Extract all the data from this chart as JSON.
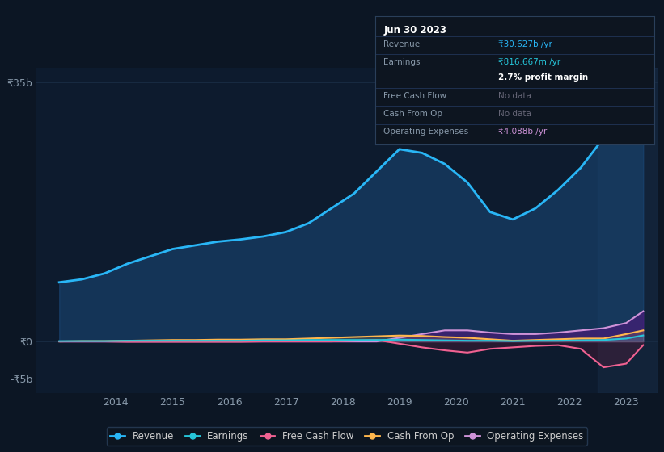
{
  "background_color": "#0c1624",
  "plot_bg_color": "#0d1b2e",
  "grid_color": "#1a2d45",
  "years": [
    2013.0,
    2013.4,
    2013.8,
    2014.2,
    2014.6,
    2015.0,
    2015.4,
    2015.8,
    2016.2,
    2016.6,
    2017.0,
    2017.4,
    2017.8,
    2018.2,
    2018.6,
    2019.0,
    2019.4,
    2019.8,
    2020.2,
    2020.6,
    2021.0,
    2021.4,
    2021.8,
    2022.2,
    2022.6,
    2023.0,
    2023.3
  ],
  "revenue": [
    8.0,
    8.4,
    9.2,
    10.5,
    11.5,
    12.5,
    13.0,
    13.5,
    13.8,
    14.2,
    14.8,
    16.0,
    18.0,
    20.0,
    23.0,
    26.0,
    25.5,
    24.0,
    21.5,
    17.5,
    16.5,
    18.0,
    20.5,
    23.5,
    27.5,
    30.0,
    30.627
  ],
  "earnings": [
    0.05,
    0.05,
    0.05,
    0.1,
    0.1,
    0.1,
    0.1,
    0.1,
    0.1,
    0.15,
    0.15,
    0.2,
    0.2,
    0.2,
    0.2,
    0.25,
    0.2,
    0.15,
    0.1,
    0.1,
    0.05,
    0.1,
    0.1,
    0.15,
    0.2,
    0.4,
    0.817
  ],
  "free_cash_flow": [
    0.0,
    0.0,
    0.0,
    -0.05,
    -0.05,
    -0.05,
    -0.05,
    -0.05,
    -0.05,
    0.0,
    0.0,
    0.0,
    0.0,
    0.1,
    0.2,
    -0.3,
    -0.8,
    -1.2,
    -1.5,
    -1.0,
    -0.8,
    -0.6,
    -0.5,
    -1.0,
    -3.5,
    -3.0,
    -0.5
  ],
  "cash_from_op": [
    0.0,
    0.05,
    0.05,
    0.1,
    0.15,
    0.2,
    0.2,
    0.25,
    0.25,
    0.3,
    0.3,
    0.4,
    0.5,
    0.6,
    0.7,
    0.8,
    0.75,
    0.6,
    0.5,
    0.3,
    0.1,
    0.2,
    0.3,
    0.4,
    0.4,
    1.0,
    1.5
  ],
  "operating_expenses": [
    0.0,
    0.0,
    0.0,
    0.0,
    0.0,
    0.0,
    0.0,
    0.0,
    0.0,
    0.0,
    0.0,
    0.0,
    0.0,
    0.0,
    0.0,
    0.5,
    1.0,
    1.5,
    1.5,
    1.2,
    1.0,
    1.0,
    1.2,
    1.5,
    1.8,
    2.5,
    4.088
  ],
  "colors": {
    "revenue": "#29b6f6",
    "revenue_fill": "#1a4a7a",
    "earnings": "#26c6da",
    "free_cash_flow": "#f06292",
    "free_cash_flow_fill": "#7a1a3a",
    "cash_from_op": "#ffb74d",
    "operating_expenses": "#ce93d8",
    "operating_expenses_fill": "#4a1a7a"
  },
  "ylim": [
    -7.0,
    37.0
  ],
  "xlim": [
    2012.6,
    2023.55
  ],
  "yticks_vals": [
    -5,
    0,
    35
  ],
  "ytick_labels": [
    "-₹5b",
    "₹0",
    "₹35b"
  ],
  "xticks": [
    2014,
    2015,
    2016,
    2017,
    2018,
    2019,
    2020,
    2021,
    2022,
    2023
  ],
  "legend_labels": [
    "Revenue",
    "Earnings",
    "Free Cash Flow",
    "Cash From Op",
    "Operating Expenses"
  ],
  "tooltip": {
    "title": "Jun 30 2023",
    "rows": [
      {
        "label": "Revenue",
        "value": "₹30.627b /yr",
        "value_color": "#29b6f6"
      },
      {
        "label": "Earnings",
        "value": "₹816.667m /yr",
        "value_color": "#26c6da"
      },
      {
        "label": "",
        "value": "2.7% profit margin",
        "value_color": "#ffffff",
        "bold": true
      },
      {
        "label": "Free Cash Flow",
        "value": "No data",
        "value_color": "#666677"
      },
      {
        "label": "Cash From Op",
        "value": "No data",
        "value_color": "#666677"
      },
      {
        "label": "Operating Expenses",
        "value": "₹4.088b /yr",
        "value_color": "#ce93d8"
      }
    ]
  }
}
